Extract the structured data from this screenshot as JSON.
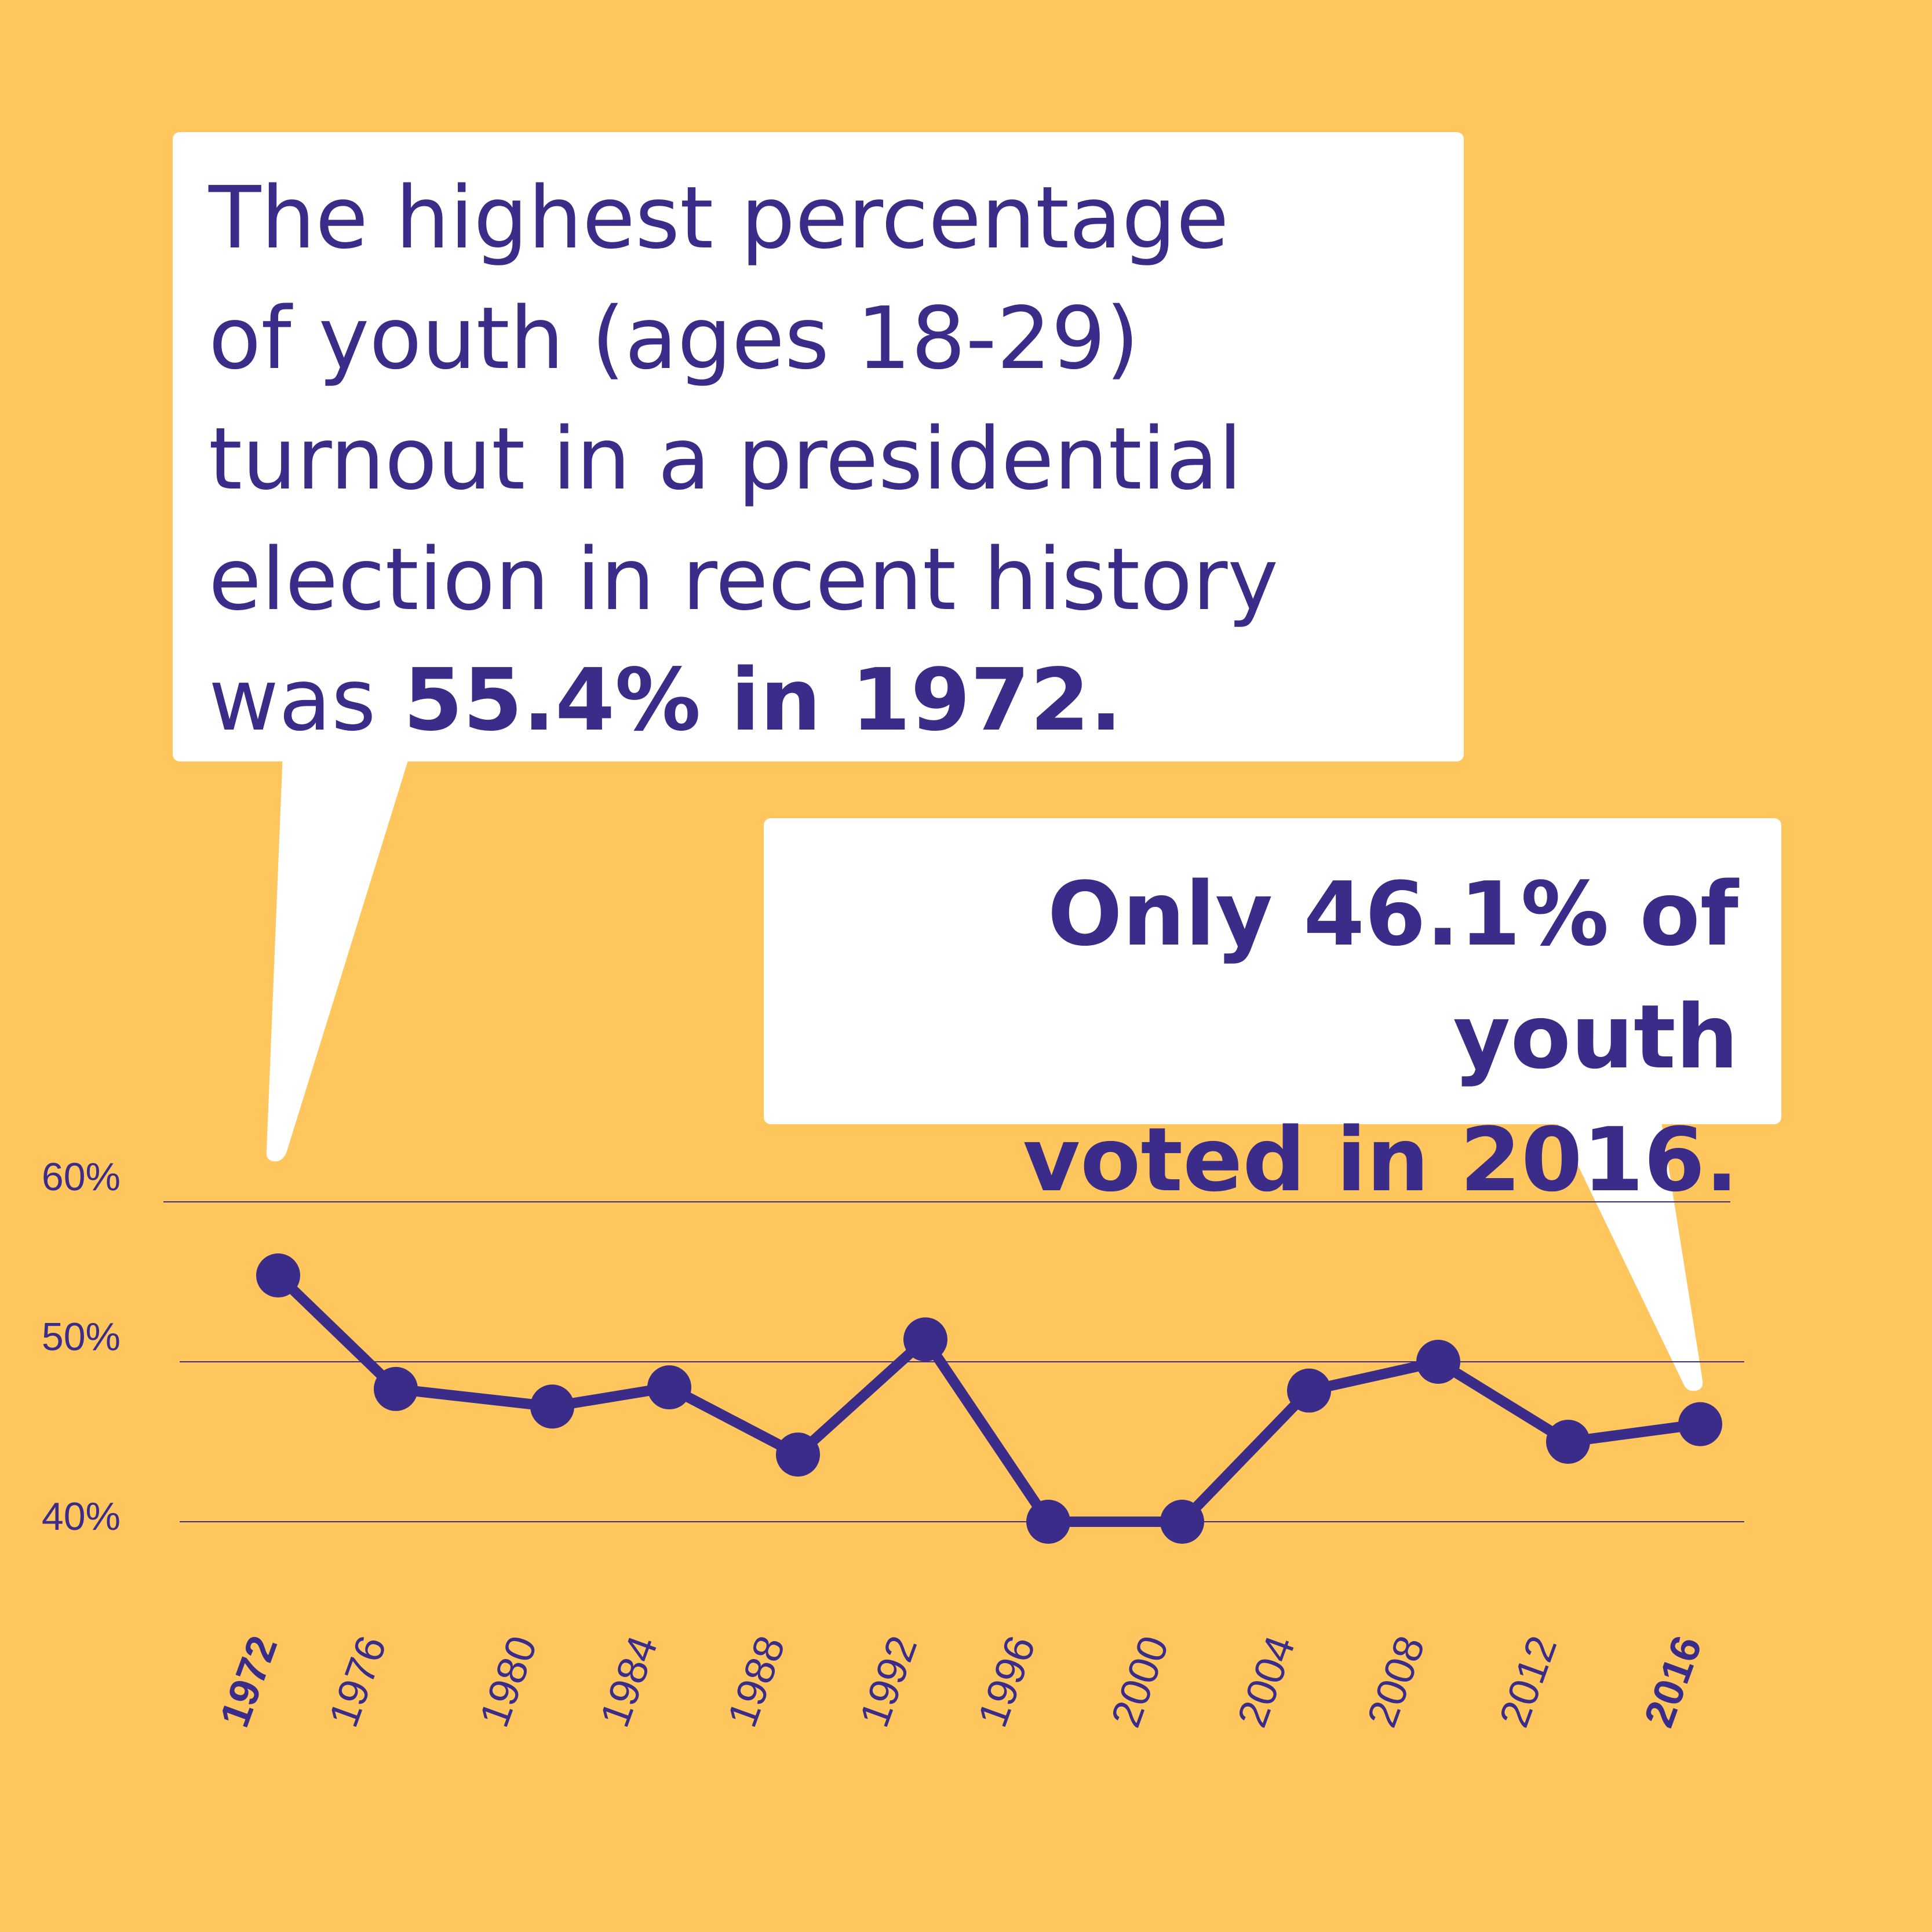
{
  "colors": {
    "background": "#FFC65E",
    "accent": "#3A2C88",
    "callout_fill": "#FFFFFF"
  },
  "callout_1": {
    "line1": "The highest percentage",
    "line2": "of youth (ages 18-29)",
    "line3": "turnout in a presidential",
    "line4": "election in recent history",
    "line5_prefix": "was ",
    "line5_bold": "55.4% in 1972."
  },
  "callout_2": {
    "line1": "Only 46.1% of youth",
    "line2": "voted in 2016."
  },
  "chart_data": {
    "type": "line",
    "title": "",
    "xlabel": "",
    "ylabel": "",
    "categories": [
      "1972",
      "1976",
      "1980",
      "1984",
      "1988",
      "1992",
      "1996",
      "2000",
      "2004",
      "2008",
      "2012",
      "2016"
    ],
    "highlighted_categories": [
      "1972",
      "2016"
    ],
    "series": [
      {
        "values": [
          55.4,
          48.3,
          47.2,
          48.4,
          44.2,
          51.4,
          40.0,
          40.0,
          48.2,
          50.0,
          45.0,
          46.1
        ]
      }
    ],
    "yticks": [
      40,
      50,
      60
    ],
    "ytick_labels": [
      "40%",
      "50%",
      "60%"
    ],
    "ylim": [
      40,
      60
    ],
    "grid": true,
    "legend": "none"
  }
}
